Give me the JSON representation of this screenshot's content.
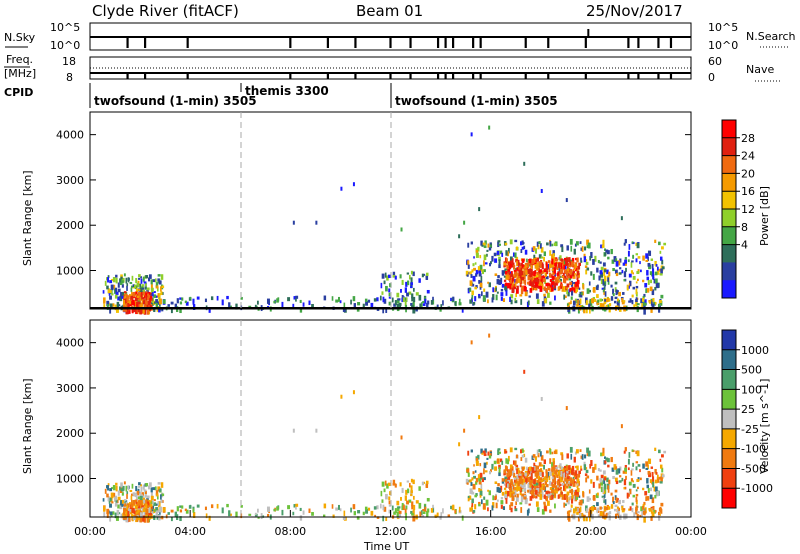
{
  "header": {
    "station": "Clyde River (fitACF)",
    "beam": "Beam 01",
    "date": "25/Nov/2017"
  },
  "top_panels": {
    "nsky_label": "N.Sky",
    "nsky_ticks": [
      "10^5",
      "10^0"
    ],
    "nsearch_label": "N.Search",
    "nsearch_ticks": [
      "10^5",
      "10^0"
    ],
    "freq_label_1": "Freq.",
    "freq_label_2": "[MHz]",
    "freq_ticks": [
      "18",
      "8"
    ],
    "nave_label": "Nave",
    "nave_ticks": [
      "60",
      "0"
    ],
    "cpid_label": "CPID",
    "cpid_segments": [
      {
        "label": "twofsound (1-min) 3505",
        "start_hour": 0,
        "end_hour": 6
      },
      {
        "label": "themis 3300",
        "start_hour": 6,
        "end_hour": 12
      },
      {
        "label": "twofsound (1-min) 3505",
        "start_hour": 12,
        "end_hour": 24
      }
    ]
  },
  "chart_data": [
    {
      "type": "heatmap",
      "ylabel": "Slant Range [km]",
      "yticks": [
        "1000",
        "2000",
        "3000",
        "4000"
      ],
      "ylim": [
        150,
        4500
      ],
      "xlim_hours": [
        0,
        24
      ],
      "colorbar_label": "Power [dB]",
      "colorbar_ticks": [
        "4",
        "8",
        "12",
        "16",
        "20",
        "24",
        "28"
      ],
      "colorbar_colors": [
        "#1a1aff",
        "#2a3fa0",
        "#2e6e5a",
        "#44a645",
        "#8fcf2a",
        "#f2c200",
        "#f59a00",
        "#f06a10",
        "#e02010",
        "#ff0000"
      ],
      "scatter_regions": [
        {
          "x": [
            0.5,
            2.9
          ],
          "y": [
            150,
            950
          ],
          "values": "mixed"
        },
        {
          "x": [
            1.3,
            2.4
          ],
          "y": [
            150,
            600
          ],
          "values": "high"
        },
        {
          "x": [
            15.0,
            22.9
          ],
          "y": [
            300,
            1700
          ],
          "values": "mixed"
        },
        {
          "x": [
            16.5,
            19.5
          ],
          "y": [
            600,
            1300
          ],
          "values": "high"
        }
      ]
    },
    {
      "type": "heatmap",
      "ylabel": "Slant Range [km]",
      "yticks": [
        "1000",
        "2000",
        "3000",
        "4000"
      ],
      "ylim": [
        150,
        4500
      ],
      "xlim_hours": [
        0,
        24
      ],
      "colorbar_label": "Velocity [m s^-1]",
      "colorbar_ticks": [
        "1000",
        "500",
        "100",
        "25",
        "-25",
        "-100",
        "-500",
        "-1000"
      ],
      "colorbar_colors": [
        "#2238a8",
        "#2e6e8a",
        "#4a9e6a",
        "#6cc23a",
        "#bfbfbf",
        "#f5a800",
        "#f07a10",
        "#f04010",
        "#ff0000"
      ],
      "x_ticks": [
        "00:00",
        "04:00",
        "08:00",
        "12:00",
        "16:00",
        "20:00",
        "00:00"
      ],
      "xlabel": "Time UT"
    }
  ]
}
